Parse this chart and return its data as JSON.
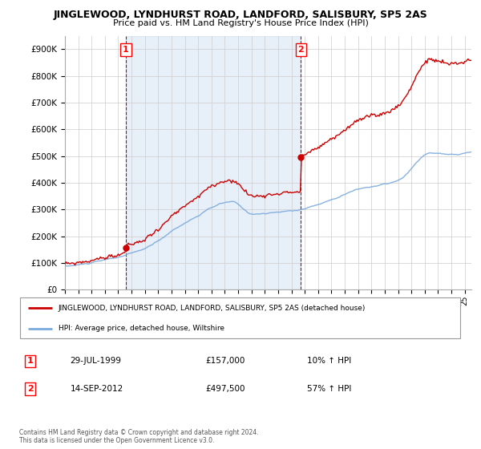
{
  "title": "JINGLEWOOD, LYNDHURST ROAD, LANDFORD, SALISBURY, SP5 2AS",
  "subtitle": "Price paid vs. HM Land Registry's House Price Index (HPI)",
  "ylim": [
    0,
    950000
  ],
  "yticks": [
    0,
    100000,
    200000,
    300000,
    400000,
    500000,
    600000,
    700000,
    800000,
    900000
  ],
  "ytick_labels": [
    "£0",
    "£100K",
    "£200K",
    "£300K",
    "£400K",
    "£500K",
    "£600K",
    "£700K",
    "£800K",
    "£900K"
  ],
  "xmin": 1995.0,
  "xmax": 2025.5,
  "marker1_x": 1999.57,
  "marker1_y": 157000,
  "marker2_x": 2012.71,
  "marker2_y": 497500,
  "legend_property": "JINGLEWOOD, LYNDHURST ROAD, LANDFORD, SALISBURY, SP5 2AS (detached house)",
  "legend_hpi": "HPI: Average price, detached house, Wiltshire",
  "annotation1_date": "29-JUL-1999",
  "annotation1_price": "£157,000",
  "annotation1_hpi": "10% ↑ HPI",
  "annotation2_date": "14-SEP-2012",
  "annotation2_price": "£497,500",
  "annotation2_hpi": "57% ↑ HPI",
  "footer": "Contains HM Land Registry data © Crown copyright and database right 2024.\nThis data is licensed under the Open Government Licence v3.0.",
  "property_color": "#cc0000",
  "hpi_color": "#7aaadd",
  "shade_color": "#ddeeff",
  "background_color": "#ffffff",
  "grid_color": "#cccccc"
}
